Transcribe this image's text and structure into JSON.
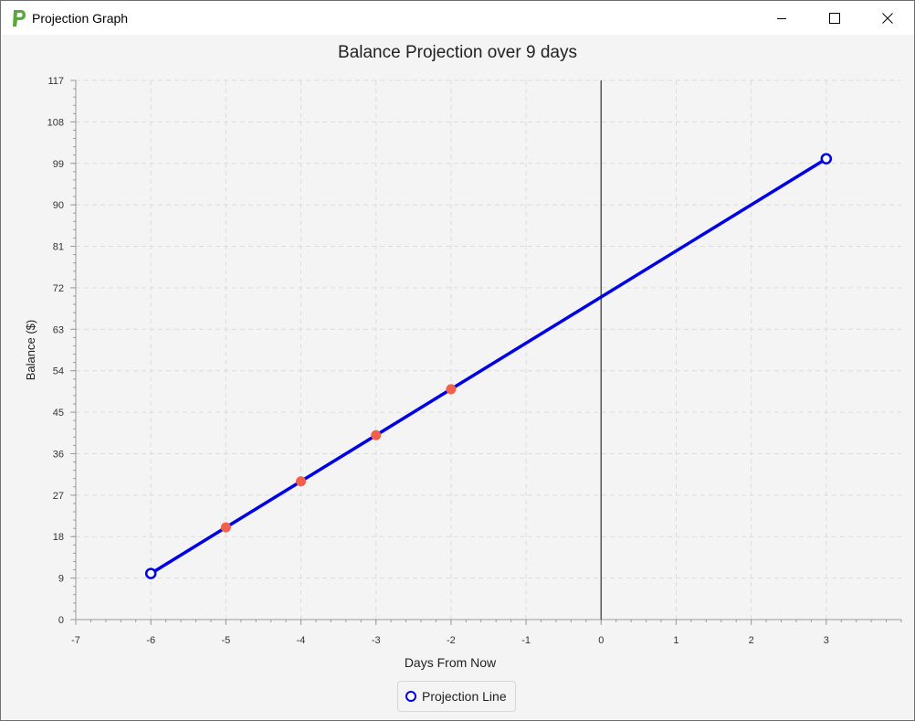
{
  "window": {
    "title": "Projection Graph",
    "icon": "app-logo-icon",
    "controls": [
      "minimize-icon",
      "maximize-icon",
      "close-icon"
    ]
  },
  "colors": {
    "line": "#0000e6",
    "historical_points": "#f0604a",
    "grid": "#dcdcdc",
    "zero_line": "#555555"
  },
  "chart_data": {
    "type": "line",
    "title": "Balance Projection over 9 days",
    "xlabel": "Days From Now",
    "ylabel": "Balance ($)",
    "xlim": [
      -7,
      4
    ],
    "ylim": [
      0,
      117
    ],
    "xticks": [
      -7,
      -6,
      -5,
      -4,
      -3,
      -2,
      -1,
      0,
      1,
      2,
      3
    ],
    "yticks": [
      0,
      9,
      18,
      27,
      36,
      45,
      54,
      63,
      72,
      81,
      90,
      99,
      108,
      117
    ],
    "grid": true,
    "legend_position": "bottom-center",
    "series": [
      {
        "name": "Projection Line",
        "x": [
          -6,
          3
        ],
        "y": [
          10,
          100
        ],
        "marker": "hollow-circle"
      }
    ],
    "points": {
      "x": [
        -5,
        -4,
        -3,
        -2
      ],
      "y": [
        20,
        30,
        40,
        50
      ]
    },
    "vertical_line_x": 0
  }
}
